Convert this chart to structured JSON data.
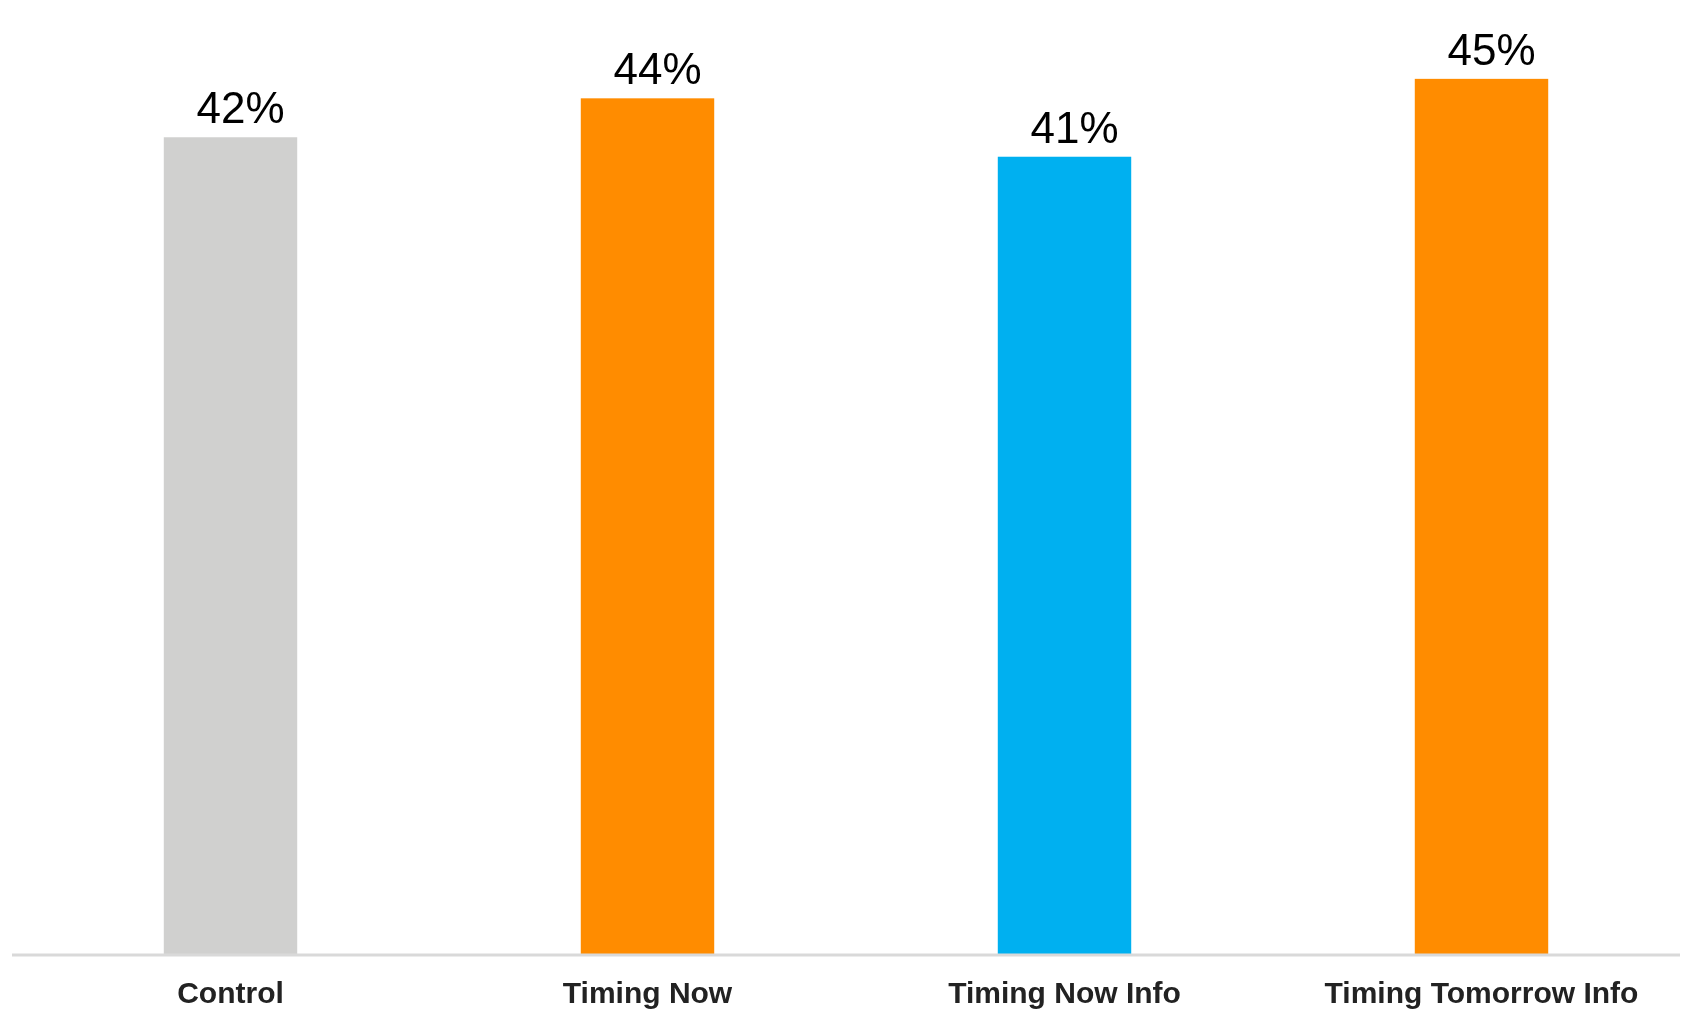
{
  "chart_data": {
    "type": "bar",
    "categories": [
      "Control",
      "Timing Now",
      "Timing Now Info",
      "Timing Tomorrow Info"
    ],
    "values": [
      42,
      44,
      41,
      45
    ],
    "colors": [
      "#d0d0cf",
      "#ff8c00",
      "#00b0f0",
      "#ff8c00"
    ],
    "value_labels": [
      "42%",
      "44%",
      "41%",
      "45%"
    ]
  }
}
